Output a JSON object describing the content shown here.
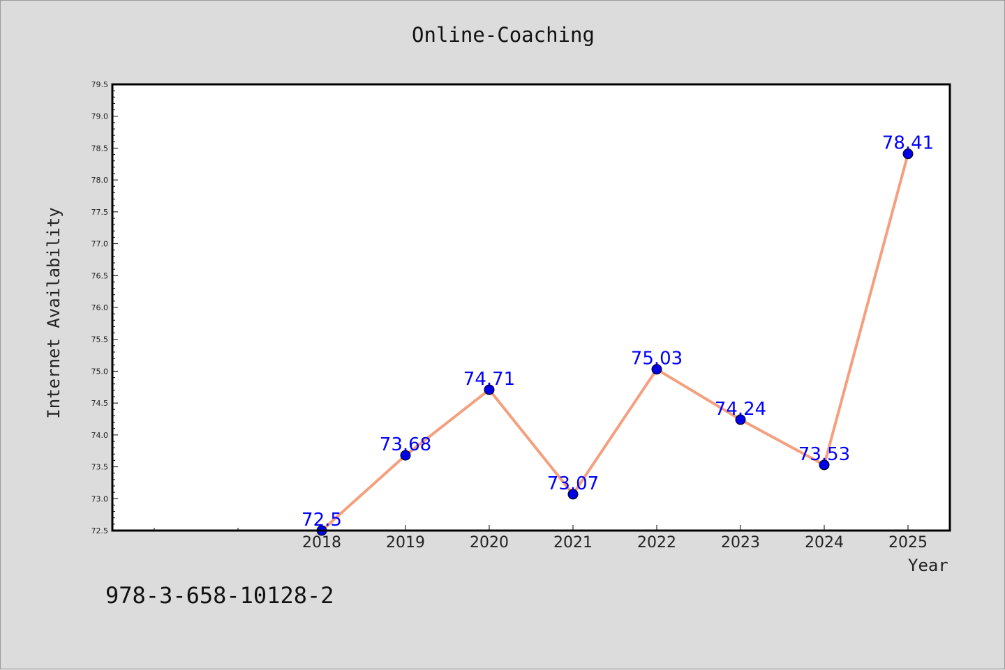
{
  "chart_data": {
    "type": "line",
    "title": "Online-Coaching",
    "xlabel": "Year",
    "ylabel": "Internet Availability",
    "x": [
      "2018",
      "2019",
      "2020",
      "2021",
      "2022",
      "2023",
      "2024",
      "2025"
    ],
    "y": [
      72.5,
      73.68,
      74.71,
      73.07,
      75.03,
      74.24,
      73.53,
      78.41
    ],
    "data_labels": [
      "72.5",
      "73.68",
      "74.71",
      "73.07",
      "75.03",
      "74.24",
      "73.53",
      "78.41"
    ],
    "ylim": [
      72.5,
      79.5
    ],
    "yticks": [
      "72.5",
      "73.0",
      "73.5",
      "74.0",
      "74.5",
      "75.0",
      "75.5",
      "76.0",
      "76.5",
      "77.0",
      "77.5",
      "78.0",
      "78.5",
      "79.0",
      "79.5"
    ],
    "grid": false,
    "line_color": "#f4a07e",
    "marker_color": "#0000e6",
    "label_color": "#0000ff"
  },
  "footer": {
    "isbn": "978-3-658-10128-2"
  }
}
